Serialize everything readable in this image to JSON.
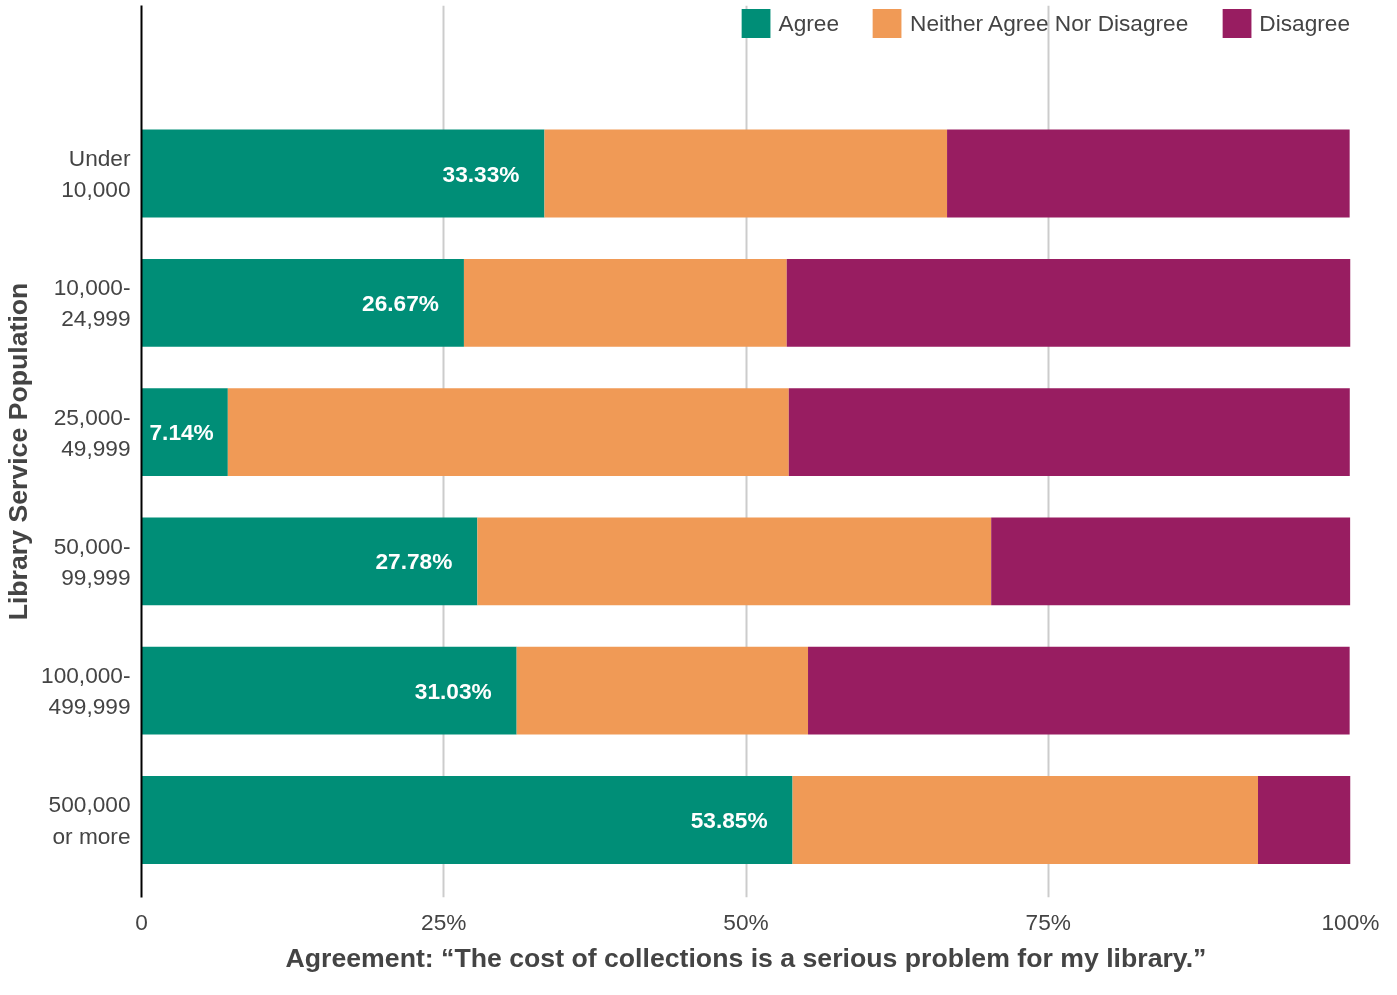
{
  "chart_data": {
    "type": "bar",
    "orientation": "horizontal",
    "stacked": true,
    "categories": [
      "Under\n10,000",
      "10,000-\n24,999",
      "25,000-\n49,999",
      "50,000-\n99,999",
      "100,000-\n499,999",
      "500,000\nor more"
    ],
    "series": [
      {
        "name": "Agree",
        "color": "#008e77",
        "values": [
          33.33,
          26.67,
          7.14,
          27.78,
          31.03,
          53.85
        ],
        "value_labels": [
          "33.33%",
          "26.67%",
          "7.14%",
          "27.78%",
          "31.03%",
          "53.85%"
        ]
      },
      {
        "name": "Neither Agree Nor Disagree",
        "color": "#f09a56",
        "values": [
          33.3,
          26.7,
          46.4,
          42.5,
          24.1,
          38.5
        ]
      },
      {
        "name": "Disagree",
        "color": "#981d61",
        "values": [
          33.3,
          46.7,
          46.4,
          29.7,
          44.8,
          7.7
        ]
      }
    ],
    "xlim": [
      0,
      100
    ],
    "xticks": [
      0,
      {
        "value": 25,
        "label": "25%"
      },
      {
        "value": 50,
        "label": "50%"
      },
      {
        "value": 75,
        "label": "75%"
      },
      {
        "value": 100,
        "label": "100%"
      }
    ],
    "xlabel": "Agreement: “The cost of collections is a serious problem for my library.”",
    "ylabel": "Library Service Population",
    "grid": "x",
    "legend": "top right"
  }
}
